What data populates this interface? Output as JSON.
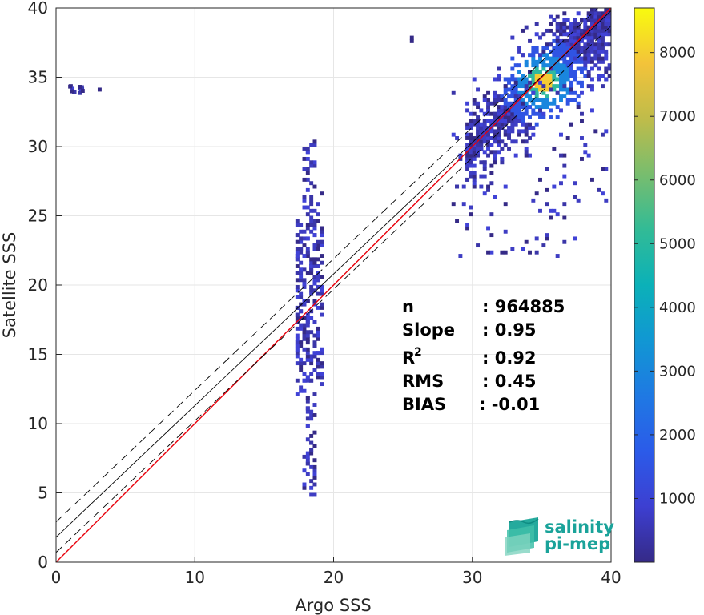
{
  "chart_data": {
    "type": "heatmap",
    "title": "",
    "xlabel": "Argo SSS",
    "ylabel": "Satellite SSS",
    "xlim": [
      0,
      40
    ],
    "ylim": [
      0,
      40
    ],
    "xticks": [
      "0",
      "10",
      "20",
      "30",
      "40"
    ],
    "yticks": [
      "0",
      "5",
      "10",
      "15",
      "20",
      "25",
      "30",
      "35",
      "40"
    ],
    "grid": true,
    "colorbar": {
      "range": [
        0,
        8700
      ],
      "ticks": [
        "1000",
        "2000",
        "3000",
        "4000",
        "5000",
        "6000",
        "7000",
        "8000"
      ],
      "colormap": "parula"
    },
    "density_regions": [
      {
        "x": [
          17.2,
          19.0
        ],
        "y": [
          5.0,
          30.5
        ],
        "density": "low-to-medium"
      },
      {
        "x": [
          29.5,
          40.0
        ],
        "y": [
          22.0,
          40.0
        ],
        "density": "high",
        "peak": [
          35.0,
          34.8
        ]
      },
      {
        "x": [
          0.5,
          2.0
        ],
        "y": [
          34.0,
          34.5
        ],
        "density": "sparse"
      }
    ],
    "lines": [
      {
        "name": "identity",
        "color": "#e8000b",
        "style": "solid",
        "x": [
          0,
          40
        ],
        "y": [
          0,
          40
        ]
      },
      {
        "name": "fit",
        "color": "#000000",
        "style": "solid",
        "x": [
          0,
          40
        ],
        "y": [
          1.8,
          39.8
        ]
      },
      {
        "name": "fit-upper",
        "color": "#000000",
        "style": "dashed",
        "x": [
          0,
          40
        ],
        "y": [
          2.9,
          40.9
        ]
      },
      {
        "name": "fit-lower",
        "color": "#000000",
        "style": "dashed",
        "x": [
          0,
          40
        ],
        "y": [
          0.7,
          38.7
        ]
      }
    ],
    "stats": [
      {
        "label": "n",
        "value": ": 964885"
      },
      {
        "label": "Slope",
        "value": ": 0.95"
      },
      {
        "label": "R",
        "sup": "2",
        "value": ": 0.92"
      },
      {
        "label": "RMS",
        "value": ": 0.45"
      },
      {
        "label": "BIAS",
        "value": ": -0.01"
      }
    ]
  },
  "logo": {
    "line1": "salinity",
    "line2": "pi-mep",
    "color": "#1aa39a"
  }
}
